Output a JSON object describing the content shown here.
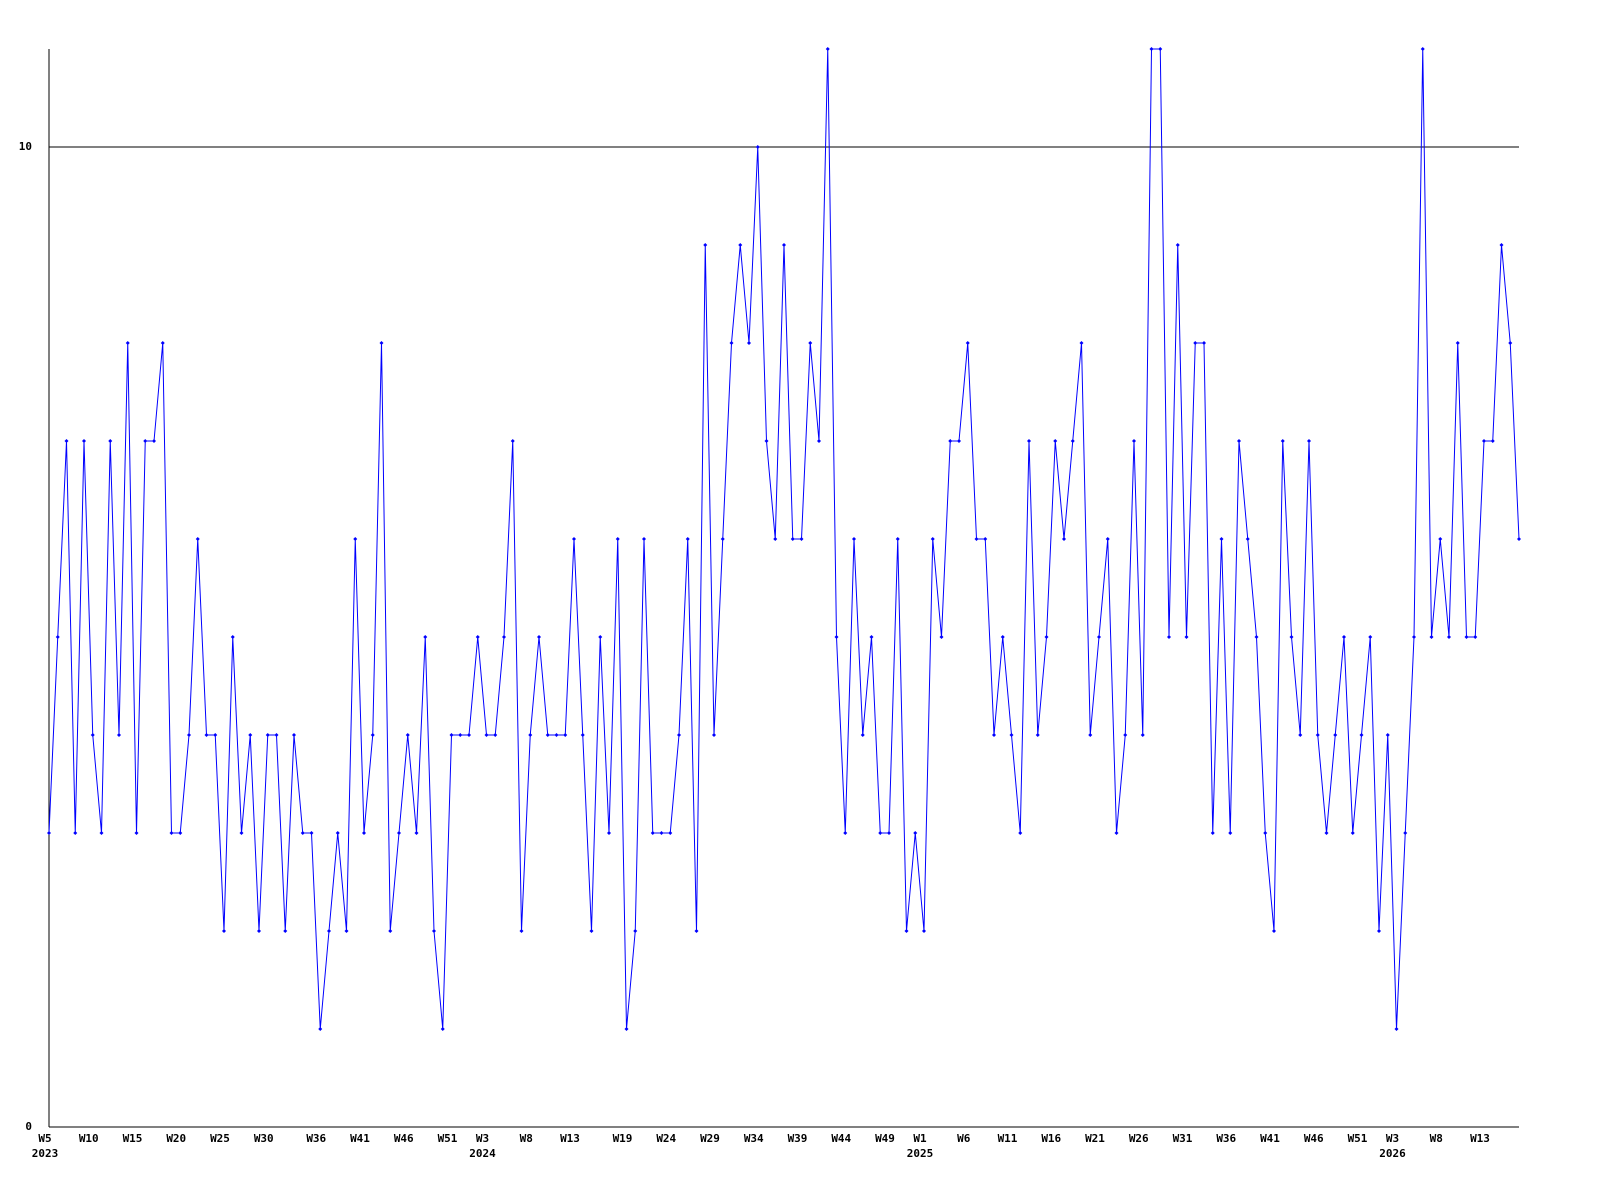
{
  "chart_data": {
    "type": "line",
    "categories": [
      "W5",
      null,
      null,
      null,
      null,
      "W10",
      null,
      null,
      null,
      null,
      "W15",
      null,
      null,
      null,
      null,
      "W20",
      null,
      null,
      null,
      null,
      "W25",
      null,
      null,
      null,
      null,
      "W30",
      null,
      null,
      null,
      null,
      null,
      "W36",
      null,
      null,
      null,
      null,
      "W41",
      null,
      null,
      null,
      null,
      "W46",
      null,
      null,
      null,
      null,
      "W51",
      null,
      null,
      null,
      "W3",
      null,
      null,
      null,
      null,
      "W8",
      null,
      null,
      null,
      null,
      "W13",
      null,
      null,
      null,
      null,
      null,
      "W19",
      null,
      null,
      null,
      null,
      "W24",
      null,
      null,
      null,
      null,
      "W29",
      null,
      null,
      null,
      null,
      "W34",
      null,
      null,
      null,
      null,
      "W39",
      null,
      null,
      null,
      null,
      "W44",
      null,
      null,
      null,
      null,
      "W49",
      null,
      null,
      null,
      "W1",
      null,
      null,
      null,
      null,
      "W6",
      null,
      null,
      null,
      null,
      "W11",
      null,
      null,
      null,
      null,
      "W16",
      null,
      null,
      null,
      null,
      "W21",
      null,
      null,
      null,
      null,
      "W26",
      null,
      null,
      null,
      null,
      "W31",
      null,
      null,
      null,
      null,
      "W36",
      null,
      null,
      null,
      null,
      "W41",
      null,
      null,
      null,
      null,
      "W46",
      null,
      null,
      null,
      null,
      "W51",
      null,
      null,
      null,
      "W3",
      null,
      null,
      null,
      null,
      "W8",
      null,
      null,
      null,
      null,
      "W13",
      null,
      null,
      null,
      null
    ],
    "years": [
      "2023",
      null,
      null,
      null,
      null,
      null,
      null,
      null,
      null,
      null,
      null,
      null,
      null,
      null,
      null,
      null,
      null,
      null,
      null,
      null,
      null,
      null,
      null,
      null,
      null,
      null,
      null,
      null,
      null,
      null,
      null,
      null,
      null,
      null,
      null,
      null,
      null,
      null,
      null,
      null,
      null,
      null,
      null,
      null,
      null,
      null,
      null,
      null,
      null,
      null,
      "2024",
      null,
      null,
      null,
      null,
      null,
      null,
      null,
      null,
      null,
      null,
      null,
      null,
      null,
      null,
      null,
      null,
      null,
      null,
      null,
      null,
      null,
      null,
      null,
      null,
      null,
      null,
      null,
      null,
      null,
      null,
      null,
      null,
      null,
      null,
      null,
      null,
      null,
      null,
      null,
      null,
      null,
      null,
      null,
      null,
      null,
      null,
      null,
      null,
      null,
      "2025",
      null,
      null,
      null,
      null,
      null,
      null,
      null,
      null,
      null,
      null,
      null,
      null,
      null,
      null,
      null,
      null,
      null,
      null,
      null,
      null,
      null,
      null,
      null,
      null,
      null,
      null,
      null,
      null,
      null,
      null,
      null,
      null,
      null,
      null,
      null,
      null,
      null,
      null,
      null,
      null,
      null,
      null,
      null,
      null,
      null,
      null,
      null,
      null,
      null,
      null,
      null,
      null,
      null,
      "2026",
      null,
      null,
      null,
      null,
      null,
      null,
      null,
      null,
      null,
      null,
      null,
      null,
      null,
      null
    ],
    "series": [
      {
        "color": "#0000ff",
        "values": [
          3,
          5,
          7,
          3,
          7,
          4,
          3,
          7,
          4,
          8,
          3,
          7,
          7,
          8,
          3,
          3,
          4,
          6,
          4,
          4,
          2,
          5,
          3,
          4,
          2,
          4,
          4,
          2,
          4,
          3,
          3,
          1,
          2,
          3,
          2,
          6,
          3,
          4,
          8,
          2,
          3,
          4,
          3,
          5,
          2,
          1,
          4,
          4,
          4,
          5,
          4,
          4,
          5,
          7,
          2,
          4,
          5,
          4,
          4,
          4,
          6,
          4,
          2,
          5,
          3,
          6,
          1,
          2,
          6,
          3,
          3,
          3,
          4,
          6,
          2,
          9,
          4,
          6,
          8,
          9,
          8,
          10,
          7,
          6,
          9,
          6,
          6,
          8,
          7,
          11,
          5,
          3,
          6,
          4,
          5,
          3,
          3,
          6,
          2,
          3,
          2,
          6,
          5,
          7,
          7,
          8,
          6,
          6,
          4,
          5,
          4,
          3,
          7,
          4,
          5,
          7,
          6,
          7,
          8,
          4,
          5,
          6,
          3,
          4,
          7,
          4,
          11,
          11,
          5,
          9,
          5,
          8,
          8,
          3,
          6,
          3,
          7,
          6,
          5,
          3,
          2,
          7,
          5,
          4,
          7,
          4,
          3,
          4,
          5,
          3,
          4,
          5,
          2,
          4,
          1,
          3,
          5,
          11,
          5,
          6,
          5,
          8,
          5,
          5,
          7,
          7,
          9,
          8,
          6
        ]
      }
    ],
    "ylim": [
      0,
      11
    ],
    "yticks": [
      0,
      10
    ],
    "grid": true
  }
}
